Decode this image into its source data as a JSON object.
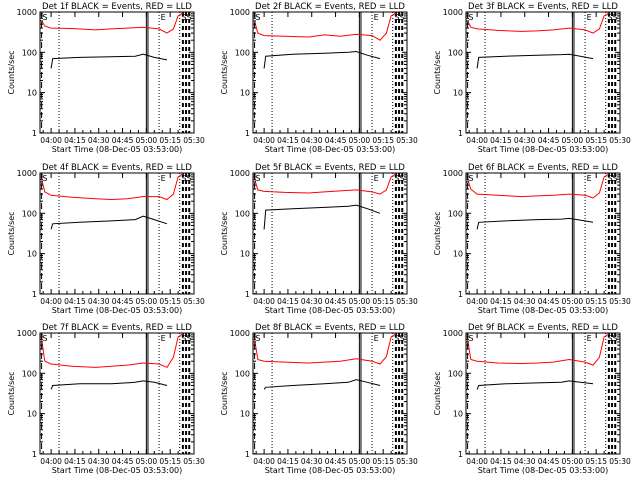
{
  "ylabel": "Counts/sec",
  "xlabel": "Start Time (08-Dec-05 03:53:00)",
  "x_tick_labels": [
    "04:00",
    "04:15",
    "04:30",
    "04:45",
    "05:00",
    "05:15",
    "05:30"
  ],
  "x_tick_minutes": [
    7,
    22,
    37,
    52,
    67,
    82,
    97
  ],
  "xlim_minutes": [
    0,
    97
  ],
  "y_tick_labels": [
    "1",
    "10",
    "100",
    "1000"
  ],
  "ylim": [
    1,
    1000
  ],
  "yscale": "log",
  "markers": {
    "S": "S",
    "E": "E",
    "SS": "SS"
  },
  "colors": {
    "events": "#000000",
    "lld": "#ff0000",
    "axes": "#000000"
  },
  "chart_data": [
    {
      "type": "line",
      "title": "Det 1f BLACK = Events, RED = LLD",
      "series": [
        {
          "name": "Events",
          "x": [
            7,
            8,
            25,
            45,
            60,
            65,
            72,
            80
          ],
          "values": [
            40,
            70,
            75,
            78,
            80,
            90,
            75,
            65
          ]
        },
        {
          "name": "LLD",
          "x": [
            1,
            3,
            7,
            20,
            35,
            45,
            55,
            65,
            75,
            80,
            84,
            87,
            90
          ],
          "values": [
            600,
            450,
            400,
            390,
            360,
            380,
            400,
            420,
            380,
            300,
            380,
            800,
            950
          ]
        }
      ]
    },
    {
      "type": "line",
      "title": "Det 2f BLACK = Events, RED = LLD",
      "series": [
        {
          "name": "Events",
          "x": [
            7,
            8,
            25,
            45,
            60,
            65,
            72,
            80
          ],
          "values": [
            40,
            80,
            90,
            95,
            100,
            105,
            85,
            70
          ]
        },
        {
          "name": "LLD",
          "x": [
            1,
            3,
            7,
            20,
            35,
            45,
            55,
            65,
            75,
            80,
            84,
            87,
            90
          ],
          "values": [
            600,
            300,
            260,
            250,
            240,
            270,
            250,
            280,
            260,
            200,
            300,
            800,
            950
          ]
        }
      ]
    },
    {
      "type": "line",
      "title": "Det 3f BLACK = Events, RED = LLD",
      "series": [
        {
          "name": "Events",
          "x": [
            7,
            8,
            25,
            45,
            60,
            65,
            72,
            80
          ],
          "values": [
            40,
            75,
            80,
            85,
            88,
            90,
            80,
            70
          ]
        },
        {
          "name": "LLD",
          "x": [
            1,
            3,
            7,
            20,
            35,
            45,
            55,
            65,
            75,
            80,
            84,
            87,
            90
          ],
          "values": [
            600,
            420,
            380,
            350,
            330,
            340,
            360,
            400,
            360,
            300,
            380,
            800,
            950
          ]
        }
      ]
    },
    {
      "type": "line",
      "title": "Det 4f BLACK = Events, RED = LLD",
      "series": [
        {
          "name": "Events",
          "x": [
            7,
            8,
            25,
            45,
            60,
            65,
            72,
            80
          ],
          "values": [
            40,
            55,
            60,
            65,
            70,
            85,
            70,
            55
          ]
        },
        {
          "name": "LLD",
          "x": [
            1,
            3,
            7,
            20,
            35,
            45,
            55,
            65,
            75,
            80,
            84,
            87,
            90
          ],
          "values": [
            700,
            340,
            280,
            250,
            230,
            220,
            230,
            260,
            260,
            220,
            300,
            800,
            950
          ]
        }
      ]
    },
    {
      "type": "line",
      "title": "Det 5f BLACK = Events, RED = LLD",
      "series": [
        {
          "name": "Events",
          "x": [
            7,
            8,
            25,
            45,
            60,
            65,
            72,
            80
          ],
          "values": [
            40,
            120,
            130,
            140,
            150,
            160,
            130,
            100
          ]
        },
        {
          "name": "LLD",
          "x": [
            1,
            3,
            7,
            20,
            35,
            45,
            55,
            65,
            75,
            80,
            84,
            87,
            90
          ],
          "values": [
            700,
            380,
            350,
            330,
            320,
            340,
            360,
            380,
            340,
            300,
            380,
            800,
            950
          ]
        }
      ]
    },
    {
      "type": "line",
      "title": "Det 6f BLACK = Events, RED = LLD",
      "series": [
        {
          "name": "Events",
          "x": [
            7,
            8,
            25,
            45,
            60,
            65,
            72,
            80
          ],
          "values": [
            40,
            60,
            65,
            70,
            72,
            75,
            68,
            60
          ]
        },
        {
          "name": "LLD",
          "x": [
            1,
            3,
            7,
            20,
            35,
            45,
            55,
            65,
            75,
            80,
            84,
            87,
            90
          ],
          "values": [
            700,
            400,
            300,
            280,
            260,
            270,
            280,
            300,
            280,
            240,
            320,
            800,
            950
          ]
        }
      ]
    },
    {
      "type": "line",
      "title": "Det 7f BLACK = Events, RED = LLD",
      "series": [
        {
          "name": "Events",
          "x": [
            7,
            8,
            25,
            45,
            60,
            65,
            72,
            80
          ],
          "values": [
            40,
            50,
            55,
            55,
            60,
            65,
            60,
            50
          ]
        },
        {
          "name": "LLD",
          "x": [
            1,
            3,
            7,
            20,
            35,
            45,
            55,
            65,
            75,
            80,
            84,
            87,
            90
          ],
          "values": [
            700,
            200,
            170,
            150,
            140,
            150,
            160,
            180,
            170,
            140,
            250,
            800,
            950
          ]
        }
      ]
    },
    {
      "type": "line",
      "title": "Det 8f BLACK = Events, RED = LLD",
      "series": [
        {
          "name": "Events",
          "x": [
            7,
            8,
            25,
            45,
            60,
            65,
            72,
            80
          ],
          "values": [
            40,
            45,
            50,
            55,
            60,
            70,
            60,
            50
          ]
        },
        {
          "name": "LLD",
          "x": [
            1,
            3,
            7,
            20,
            35,
            45,
            55,
            65,
            75,
            80,
            84,
            87,
            90
          ],
          "values": [
            700,
            220,
            200,
            190,
            180,
            190,
            200,
            230,
            200,
            170,
            260,
            800,
            950
          ]
        }
      ]
    },
    {
      "type": "line",
      "title": "Det 9f BLACK = Events, RED = LLD",
      "series": [
        {
          "name": "Events",
          "x": [
            7,
            8,
            25,
            45,
            60,
            65,
            72,
            80
          ],
          "values": [
            40,
            50,
            55,
            58,
            60,
            65,
            60,
            55
          ]
        },
        {
          "name": "LLD",
          "x": [
            1,
            3,
            7,
            20,
            35,
            45,
            55,
            65,
            75,
            80,
            84,
            87,
            90
          ],
          "values": [
            700,
            220,
            200,
            180,
            175,
            180,
            190,
            220,
            190,
            160,
            250,
            800,
            950
          ]
        }
      ]
    }
  ]
}
